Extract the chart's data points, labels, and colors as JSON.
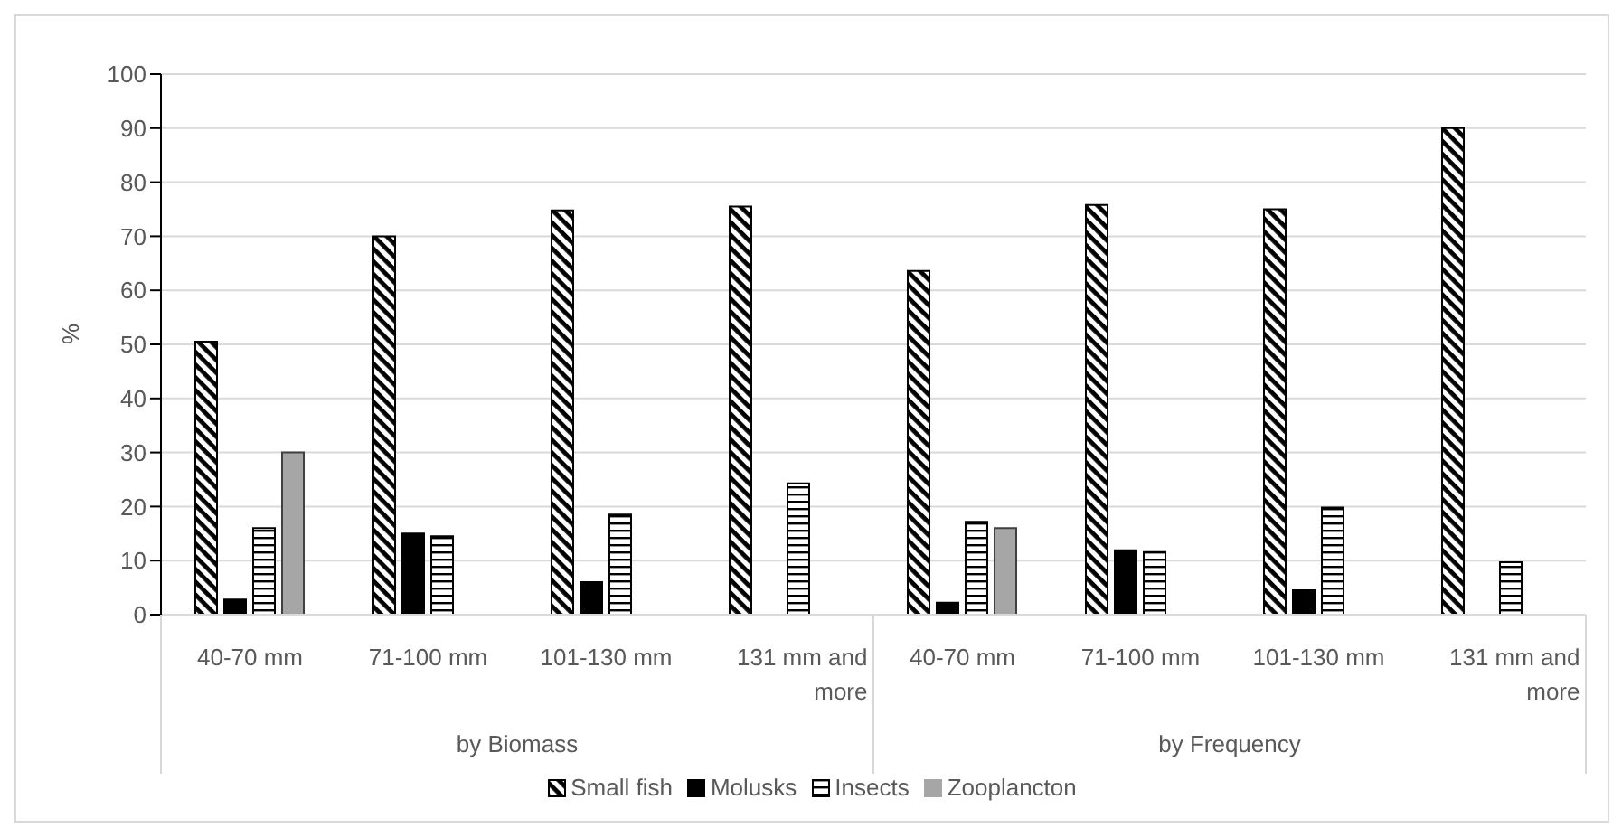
{
  "chart_data": {
    "type": "bar",
    "ylabel": "%",
    "categories": [
      "40-70 mm",
      "71-100 mm",
      "101-130 mm",
      "131 mm and more",
      "40-70 mm",
      "71-100 mm",
      "101-130 mm",
      "131 mm and more"
    ],
    "series": [
      {
        "name": "Small fish",
        "color": "#000000",
        "values": [
          50.5,
          70,
          74.8,
          75.5,
          63.6,
          75.8,
          75,
          90
        ]
      },
      {
        "name": "Molusks",
        "color": "#000000",
        "values": [
          2.8,
          15,
          6,
          null,
          2.2,
          11.9,
          4.5,
          null
        ]
      },
      {
        "name": "Insects",
        "color": "#000000",
        "values": [
          16,
          14.5,
          18.5,
          24.3,
          17.2,
          11.6,
          19.8,
          9.7
        ]
      },
      {
        "name": "Zooplancton",
        "color": "#a6a6a6",
        "values": [
          30,
          null,
          null,
          null,
          16,
          null,
          null,
          null
        ]
      }
    ],
    "annotations": [
      "by Biomass",
      "by Frequency"
    ],
    "ylim": [
      0,
      100
    ],
    "yticks": [
      0,
      10,
      20,
      30,
      40,
      50,
      60,
      70,
      80,
      90,
      100
    ],
    "grid": "y",
    "legend": "bottom"
  }
}
